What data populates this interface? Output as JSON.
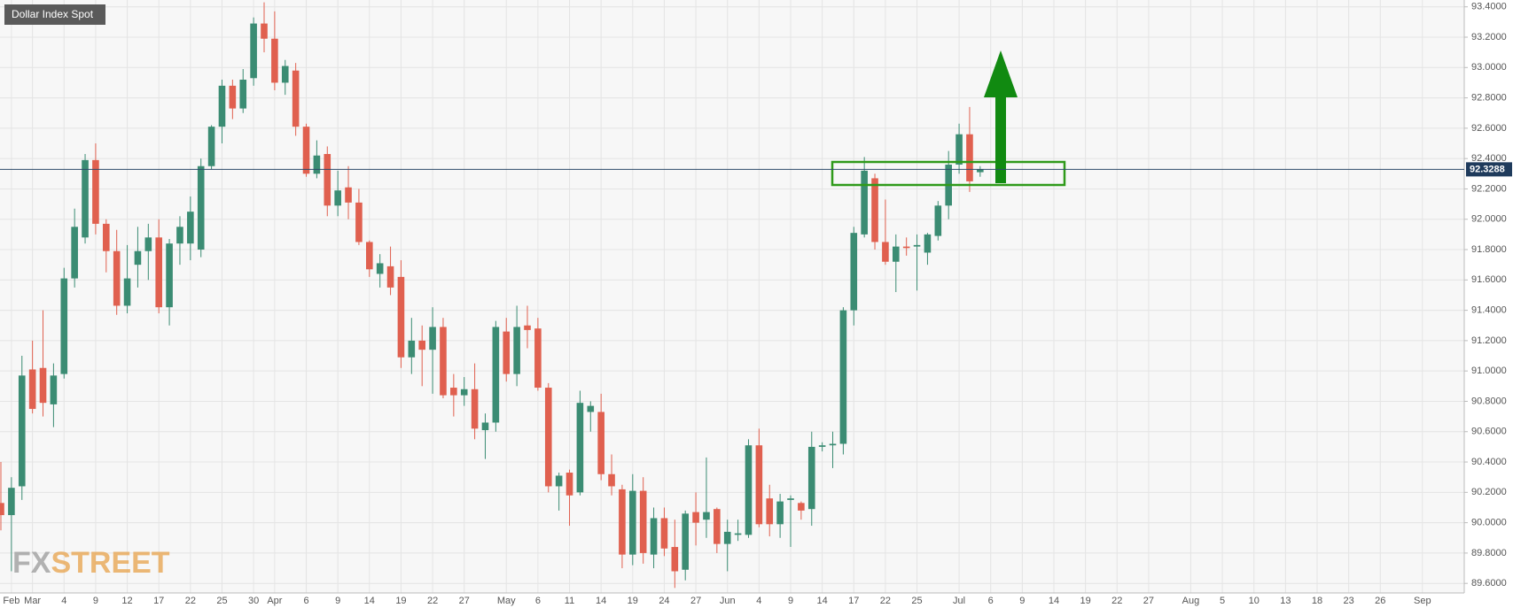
{
  "chart_data": {
    "type": "candlestick",
    "title": "Dollar Index Spot",
    "watermark": [
      "FX",
      "STREET"
    ],
    "categories": [
      null,
      "Feb",
      null,
      "Mar",
      null,
      null,
      "4",
      null,
      null,
      "9",
      null,
      null,
      "12",
      null,
      null,
      "17",
      null,
      null,
      "22",
      null,
      null,
      "25",
      null,
      null,
      "30",
      null,
      "Apr",
      null,
      null,
      "6",
      null,
      null,
      "9",
      null,
      null,
      "14",
      null,
      null,
      "19",
      null,
      null,
      "22",
      null,
      null,
      "27",
      null,
      null,
      null,
      "May",
      null,
      null,
      "6",
      null,
      null,
      "11",
      null,
      null,
      "14",
      null,
      null,
      "19",
      null,
      null,
      "24",
      null,
      null,
      "27",
      null,
      null,
      "Jun",
      null,
      null,
      "4",
      null,
      null,
      "9",
      null,
      null,
      "14",
      null,
      null,
      "17",
      null,
      null,
      "22",
      null,
      null,
      "25",
      null,
      null,
      null,
      "Jul",
      null,
      null,
      "6",
      null,
      null,
      "9",
      null,
      null,
      "14",
      null,
      null,
      "19",
      null,
      null,
      "22",
      null,
      null,
      "27",
      null,
      null,
      null,
      "Aug",
      null,
      null,
      "5",
      null,
      null,
      "10",
      null,
      null,
      "13",
      null,
      null,
      "18",
      null,
      null,
      "23",
      null,
      null,
      "26",
      null,
      null,
      null,
      "Sep"
    ],
    "open": [
      90.13,
      90.05,
      90.24,
      91.01,
      91.02,
      90.78,
      90.98,
      91.61,
      91.88,
      92.39,
      91.97,
      91.79,
      91.43,
      91.7,
      91.79,
      91.88,
      91.42,
      91.84,
      91.84,
      91.8,
      92.35,
      92.61,
      92.88,
      92.73,
      92.93,
      93.29,
      93.19,
      92.9,
      92.98,
      92.61,
      92.3,
      92.43,
      92.09,
      92.21,
      92.11,
      91.85,
      91.64,
      91.69,
      91.62,
      91.09,
      91.2,
      91.14,
      91.29,
      90.89,
      90.84,
      90.88,
      90.61,
      90.66,
      91.26,
      90.98,
      91.3,
      91.28,
      90.89,
      90.24,
      90.33,
      90.2,
      90.73,
      90.73,
      90.32,
      90.22,
      89.79,
      90.21,
      89.79,
      90.03,
      89.84,
      89.69,
      90.07,
      90.02,
      90.09,
      89.86,
      89.92,
      89.92,
      90.51,
      90.16,
      89.99,
      90.15,
      90.13,
      90.09,
      90.5,
      90.51,
      90.52,
      91.4,
      91.9,
      92.27,
      91.85,
      91.72,
      91.82,
      91.82,
      91.78,
      91.89,
      92.09,
      92.36,
      92.56,
      92.31,
      null,
      null,
      null,
      null,
      null,
      null,
      null,
      null,
      null,
      null,
      null,
      null,
      null,
      null,
      null,
      null,
      null,
      null,
      null,
      null,
      null,
      null,
      null,
      null,
      null,
      null,
      null,
      null,
      null,
      null,
      null,
      null,
      null,
      null,
      null,
      null,
      null,
      null,
      null,
      null,
      null,
      null
    ],
    "high": [
      90.4,
      90.3,
      91.1,
      91.2,
      91.4,
      91.05,
      91.68,
      92.07,
      92.43,
      92.5,
      92.0,
      91.93,
      91.83,
      91.95,
      91.97,
      92.0,
      91.87,
      92.02,
      92.15,
      92.4,
      92.62,
      92.92,
      92.92,
      92.99,
      93.33,
      93.43,
      93.37,
      93.05,
      93.03,
      92.63,
      92.52,
      92.48,
      92.32,
      92.35,
      92.2,
      91.86,
      91.77,
      91.82,
      91.73,
      91.35,
      91.3,
      91.42,
      91.35,
      90.98,
      90.96,
      91.05,
      90.72,
      91.33,
      91.35,
      91.43,
      91.43,
      91.35,
      90.92,
      90.33,
      90.35,
      90.87,
      90.8,
      90.85,
      90.45,
      90.25,
      90.32,
      90.3,
      90.1,
      90.1,
      90.02,
      90.08,
      90.2,
      90.43,
      90.1,
      90.02,
      90.02,
      90.55,
      90.62,
      90.25,
      90.19,
      90.18,
      90.14,
      90.6,
      90.53,
      90.6,
      91.42,
      91.95,
      92.41,
      92.3,
      92.13,
      91.9,
      91.88,
      91.9,
      91.91,
      92.12,
      92.45,
      92.63,
      92.74,
      92.35,
      null,
      null,
      null,
      null,
      null,
      null,
      null,
      null,
      null,
      null,
      null,
      null,
      null,
      null,
      null,
      null,
      null,
      null,
      null,
      null,
      null,
      null,
      null,
      null,
      null,
      null,
      null,
      null,
      null,
      null,
      null,
      null,
      null,
      null,
      null,
      null,
      null,
      null,
      null,
      null,
      null,
      null
    ],
    "low": [
      89.95,
      89.68,
      90.15,
      90.72,
      90.7,
      90.63,
      90.95,
      91.55,
      91.84,
      91.9,
      91.65,
      91.37,
      91.38,
      91.55,
      91.6,
      91.38,
      91.3,
      91.7,
      91.73,
      91.75,
      92.33,
      92.5,
      92.66,
      92.7,
      92.88,
      93.1,
      92.85,
      92.82,
      92.55,
      92.28,
      92.27,
      92.02,
      92.02,
      92.0,
      91.83,
      91.62,
      91.55,
      91.5,
      91.02,
      90.98,
      90.9,
      90.85,
      90.82,
      90.7,
      90.77,
      90.55,
      90.42,
      90.6,
      90.93,
      90.9,
      91.15,
      90.87,
      90.2,
      90.08,
      89.98,
      90.18,
      90.6,
      90.28,
      90.18,
      89.7,
      89.72,
      89.73,
      89.7,
      89.78,
      89.57,
      89.62,
      89.85,
      89.9,
      89.8,
      89.68,
      89.88,
      89.9,
      89.97,
      89.91,
      89.9,
      89.84,
      90.02,
      89.98,
      90.47,
      90.36,
      90.45,
      91.3,
      91.88,
      91.8,
      91.7,
      91.52,
      91.76,
      91.53,
      91.7,
      91.86,
      92.0,
      92.3,
      92.18,
      92.28,
      null,
      null,
      null,
      null,
      null,
      null,
      null,
      null,
      null,
      null,
      null,
      null,
      null,
      null,
      null,
      null,
      null,
      null,
      null,
      null,
      null,
      null,
      null,
      null,
      null,
      null,
      null,
      null,
      null,
      null,
      null,
      null,
      null,
      null,
      null,
      null,
      null,
      null,
      null,
      null,
      null,
      null
    ],
    "close": [
      90.05,
      90.23,
      90.97,
      90.75,
      90.79,
      90.97,
      91.61,
      91.95,
      92.39,
      91.97,
      91.79,
      91.43,
      91.61,
      91.79,
      91.88,
      91.42,
      91.84,
      91.95,
      92.05,
      92.35,
      92.61,
      92.88,
      92.73,
      92.92,
      93.29,
      93.19,
      92.9,
      93.01,
      92.61,
      92.3,
      92.42,
      92.09,
      92.19,
      92.11,
      91.85,
      91.67,
      91.71,
      91.55,
      91.09,
      91.2,
      91.14,
      91.29,
      90.84,
      90.84,
      90.88,
      90.62,
      90.66,
      91.29,
      90.98,
      91.29,
      91.27,
      90.89,
      90.24,
      90.31,
      90.18,
      90.79,
      90.77,
      90.32,
      90.24,
      89.79,
      90.21,
      89.8,
      90.03,
      89.83,
      89.68,
      90.06,
      90.0,
      90.07,
      89.86,
      89.94,
      89.93,
      90.51,
      89.99,
      89.99,
      90.14,
      90.16,
      90.08,
      90.5,
      90.51,
      90.52,
      91.4,
      91.91,
      92.32,
      91.85,
      91.72,
      91.82,
      91.81,
      91.83,
      91.9,
      92.09,
      92.36,
      92.56,
      92.25,
      92.33,
      null,
      null,
      null,
      null,
      null,
      null,
      null,
      null,
      null,
      null,
      null,
      null,
      null,
      null,
      null,
      null,
      null,
      null,
      null,
      null,
      null,
      null,
      null,
      null,
      null,
      null,
      null,
      null,
      null,
      null,
      null,
      null,
      null,
      null,
      null,
      null,
      null,
      null,
      null,
      null,
      null,
      null
    ],
    "up_color": "#3b8c73",
    "down_color": "#e0604f",
    "last_price": 92.3288,
    "ylim": [
      89.537,
      93.445
    ],
    "yticks": [
      {
        "value": 89.6,
        "label": "89.6000"
      },
      {
        "value": 89.8,
        "label": "89.8000"
      },
      {
        "value": 90.0,
        "label": "90.0000"
      },
      {
        "value": 90.2,
        "label": "90.2000"
      },
      {
        "value": 90.4,
        "label": "90.4000"
      },
      {
        "value": 90.6,
        "label": "90.6000"
      },
      {
        "value": 90.8,
        "label": "90.8000"
      },
      {
        "value": 91.0,
        "label": "91.0000"
      },
      {
        "value": 91.2,
        "label": "91.2000"
      },
      {
        "value": 91.4,
        "label": "91.4000"
      },
      {
        "value": 91.6,
        "label": "91.6000"
      },
      {
        "value": 91.8,
        "label": "91.8000"
      },
      {
        "value": 92.0,
        "label": "92.0000"
      },
      {
        "value": 92.2,
        "label": "92.2000"
      },
      {
        "value": 92.4,
        "label": "92.4000"
      },
      {
        "value": 92.6,
        "label": "92.6000"
      },
      {
        "value": 92.8,
        "label": "92.8000"
      },
      {
        "value": 93.0,
        "label": "93.0000"
      },
      {
        "value": 93.2,
        "label": "93.2000"
      },
      {
        "value": 93.4,
        "label": "93.4000"
      }
    ],
    "grid": true
  }
}
